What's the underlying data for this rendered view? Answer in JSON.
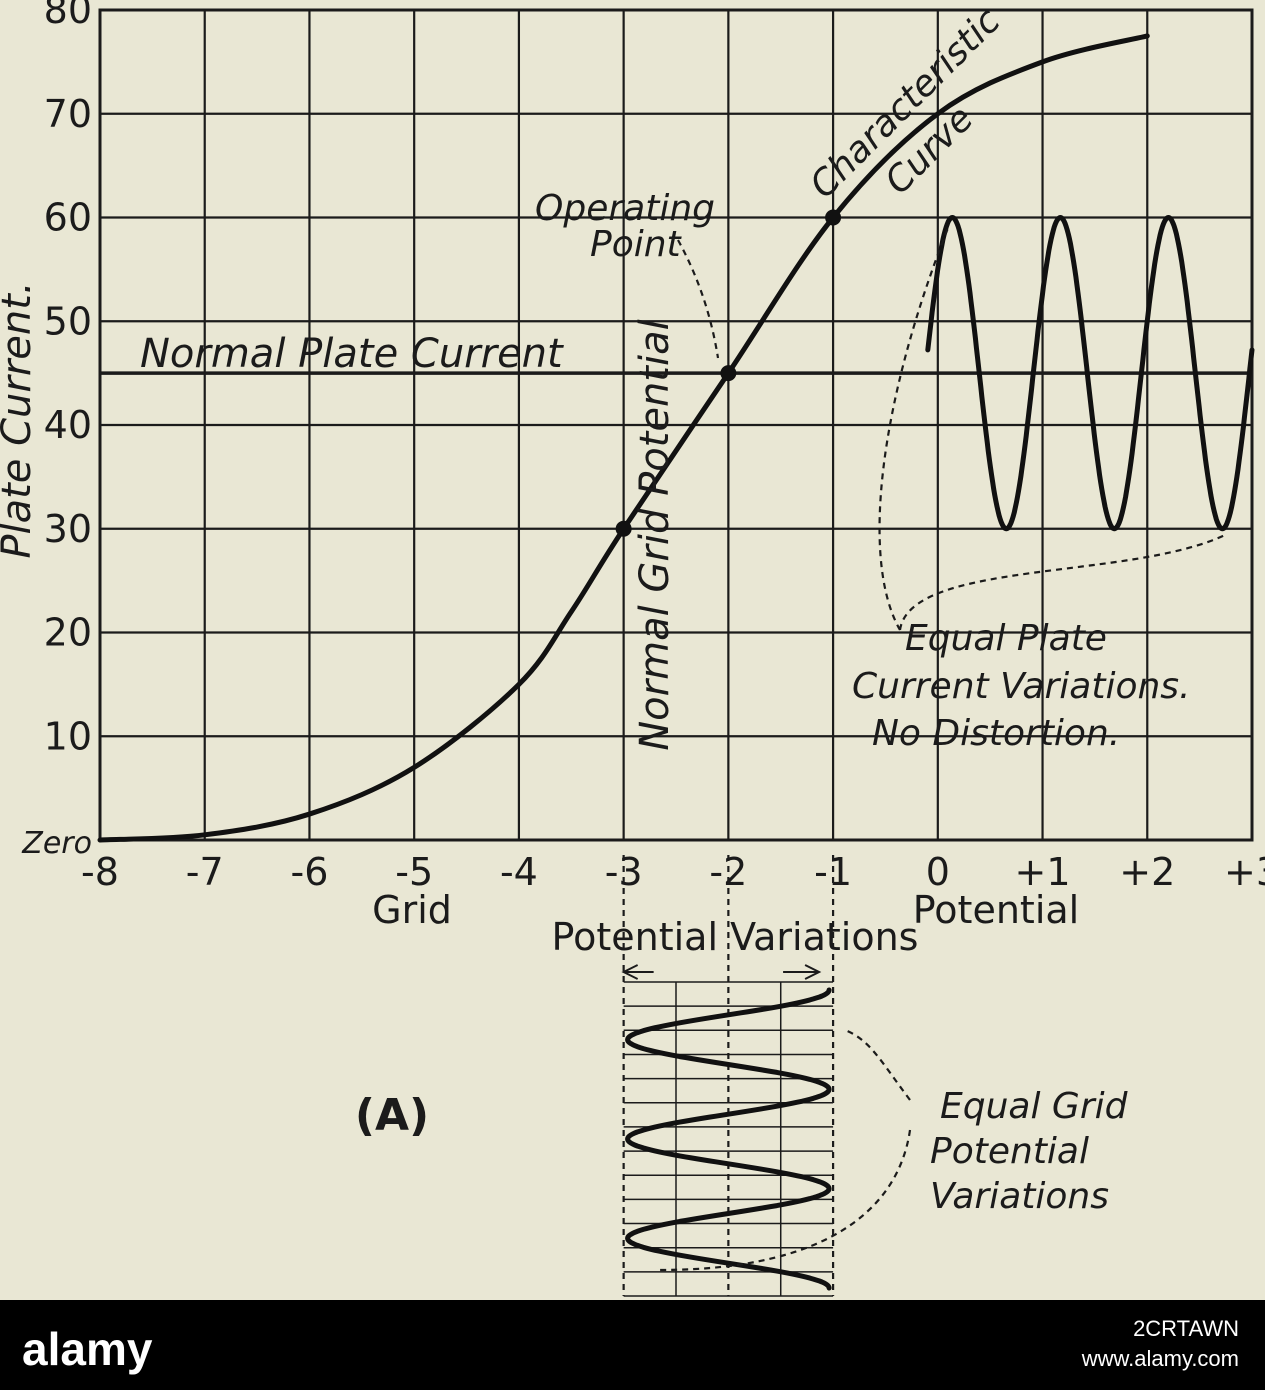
{
  "chart_data": {
    "type": "line",
    "title": "",
    "ylabel": "Plate Current.",
    "xlabel_left": "Grid",
    "xlabel_right": "Potential",
    "xlim": [
      -8,
      3
    ],
    "ylim": [
      0,
      80
    ],
    "grid": true,
    "x_ticks": [
      "-8",
      "-7",
      "-6",
      "-5",
      "-4",
      "-3",
      "-2",
      "-1",
      "0",
      "+1",
      "+2",
      "+3"
    ],
    "y_ticks": [
      "Zero",
      "10",
      "20",
      "30",
      "40",
      "50",
      "60",
      "70",
      "80"
    ],
    "series": [
      {
        "x": [
          -8,
          -7,
          -6,
          -5,
          -4,
          -3.5,
          -3,
          -2,
          -1,
          0,
          1,
          2
        ],
        "y": [
          0,
          0.5,
          2.5,
          7,
          15,
          22,
          30,
          45,
          60,
          70,
          75,
          77.5
        ]
      }
    ],
    "marked_points": [
      {
        "x": -3,
        "y": 30
      },
      {
        "x": -2,
        "y": 45
      },
      {
        "x": -1,
        "y": 60
      }
    ],
    "normal_plate_current": 45,
    "plate_wave": {
      "min": 30,
      "max": 60,
      "x_start": 0,
      "x_end": 3,
      "cycles": 3
    },
    "grid_wave": {
      "min_x": -3,
      "max_x": -1,
      "cycles": 3
    },
    "annotations": {
      "normal_plate_current": "Normal Plate Current",
      "normal_grid_potential": "Normal Grid Potential",
      "operating_point_1": "Operating",
      "operating_point_2": "Point",
      "characteristic_1": "Characteristic",
      "characteristic_2": "Curve",
      "equal_plate_1": "Equal Plate",
      "equal_plate_2": "Current Variations.",
      "equal_plate_3": "No Distortion.",
      "potential_variations": "Potential Variations",
      "equal_grid_1": "Equal Grid",
      "equal_grid_2": "Potential",
      "equal_grid_3": "Variations",
      "figure_label": "(A)"
    }
  },
  "watermark": {
    "logo": "alamy",
    "image_id": "2CRTAWN",
    "url": "www.alamy.com"
  }
}
